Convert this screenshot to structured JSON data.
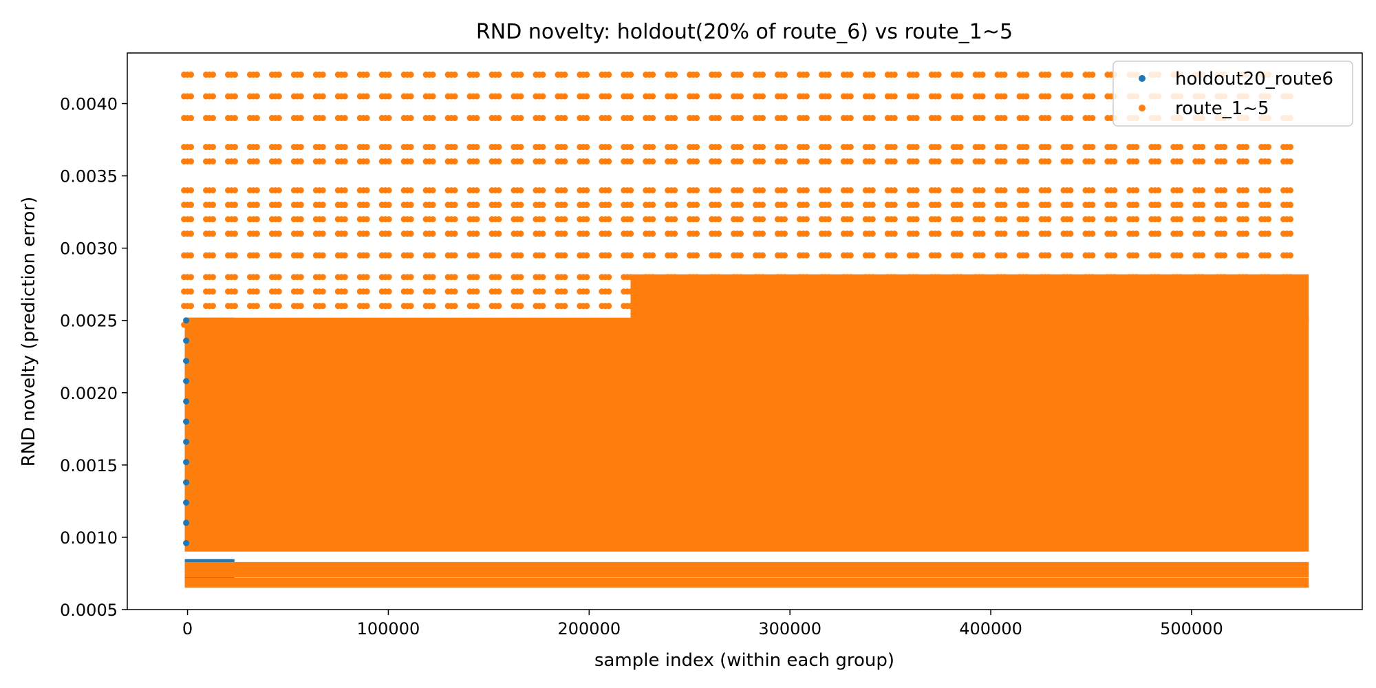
{
  "chart_data": {
    "type": "scatter",
    "title": "RND novelty: holdout(20% of route_6) vs route_1~5",
    "xlabel": "sample index (within each group)",
    "ylabel": "RND novelty (prediction error)",
    "xlim": [
      -30000,
      585000
    ],
    "ylim": [
      0.0005,
      0.00435
    ],
    "x_ticks": [
      0,
      100000,
      200000,
      300000,
      400000,
      500000
    ],
    "x_tick_labels": [
      "0",
      "100000",
      "200000",
      "300000",
      "400000",
      "500000"
    ],
    "y_ticks": [
      0.0005,
      0.001,
      0.0015,
      0.002,
      0.0025,
      0.003,
      0.0035,
      0.004
    ],
    "y_tick_labels": [
      "0.0005",
      "0.0010",
      "0.0015",
      "0.0020",
      "0.0025",
      "0.0030",
      "0.0035",
      "0.0040"
    ],
    "grid": false,
    "legend_position": "top-right",
    "series": [
      {
        "name": "holdout20_route6",
        "color": "#1f77b4",
        "x_range": [
          0,
          22000
        ],
        "bands": [
          {
            "y_min": 0.00068,
            "y_max": 0.0007
          },
          {
            "y_min": 0.00073,
            "y_max": 0.00083
          },
          {
            "y_min": 0.00096,
            "y_max": 0.0025
          }
        ]
      },
      {
        "name": "route_1~5",
        "color": "#ff7f0e",
        "x_range": [
          0,
          557000
        ],
        "core_band": {
          "y_min": 0.00092,
          "y_max": 0.0025
        },
        "upper_core_from_x": 222000,
        "upper_core_max": 0.0028,
        "low_bands": [
          {
            "y_min": 0.00067,
            "y_max": 0.0007
          },
          {
            "y_min": 0.00074,
            "y_max": 0.00081
          }
        ],
        "spike_period": 10950,
        "spike_levels": [
          0.0042,
          0.00405,
          0.0039,
          0.0037,
          0.0036,
          0.0034,
          0.0033,
          0.0032,
          0.0031,
          0.00295,
          0.0028,
          0.0027,
          0.0026,
          0.00247
        ],
        "top_spike_level": 0.0042
      }
    ]
  }
}
